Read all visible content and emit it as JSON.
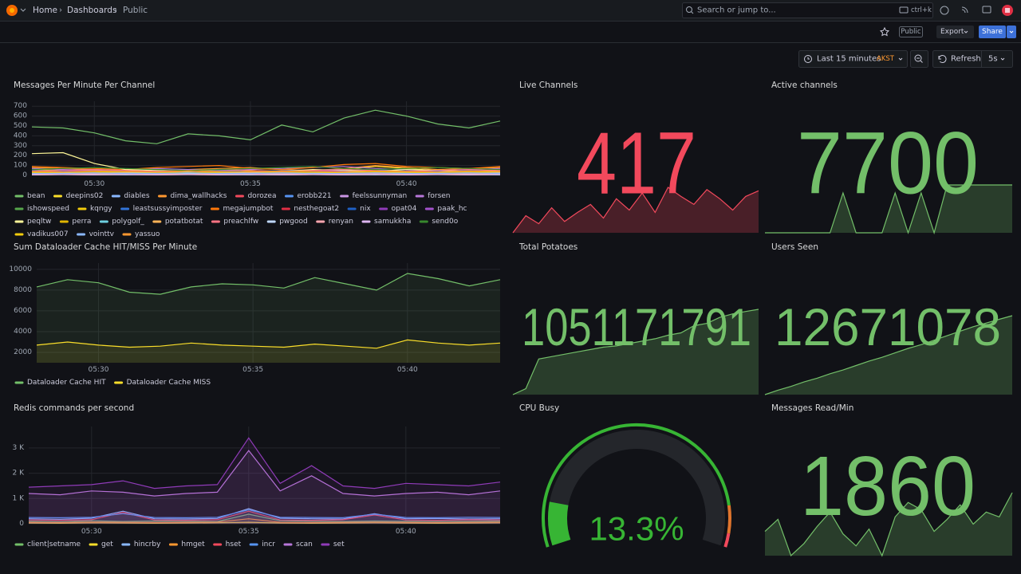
{
  "header": {
    "breadcrumbs": [
      "Home",
      "Dashboards",
      "Public"
    ],
    "search_placeholder": "Search or jump to...",
    "search_shortcut": "ctrl+k"
  },
  "toolbar": {
    "badge": "Public",
    "export": "Export",
    "share": "Share"
  },
  "time_controls": {
    "range": "Last 15 minutes",
    "timezone": "AKST",
    "refresh": "Refresh",
    "interval": "5s"
  },
  "chart_data": [
    {
      "type": "line",
      "title": "Messages Per Minute Per Channel",
      "fill": false,
      "x": [
        "05:28",
        "05:29",
        "05:30",
        "05:31",
        "05:32",
        "05:33",
        "05:34",
        "05:35",
        "05:36",
        "05:37",
        "05:38",
        "05:39",
        "05:40",
        "05:41",
        "05:42",
        "05:43"
      ],
      "xticks": [
        "05:30",
        "05:35",
        "05:40"
      ],
      "ylim": [
        0,
        750
      ],
      "yticks": [
        0,
        100,
        200,
        300,
        400,
        500,
        600,
        700
      ],
      "series": [
        {
          "name": "bean",
          "color": "#73bf69",
          "values": [
            490,
            480,
            430,
            350,
            320,
            420,
            400,
            360,
            510,
            440,
            580,
            660,
            600,
            520,
            480,
            550
          ]
        },
        {
          "name": "deepins02",
          "color": "#fade2a",
          "values": [
            60,
            50,
            40,
            30,
            40,
            50,
            60,
            40,
            30,
            50,
            60,
            90,
            70,
            50,
            40,
            60
          ]
        },
        {
          "name": "diables",
          "color": "#8ab8ff",
          "values": [
            20,
            30,
            25,
            20,
            15,
            30,
            25,
            20,
            15,
            25,
            30,
            20,
            25,
            30,
            20,
            25
          ]
        },
        {
          "name": "dima_wallhacks",
          "color": "#ff9830",
          "values": [
            80,
            70,
            60,
            50,
            40,
            60,
            70,
            80,
            60,
            50,
            70,
            100,
            80,
            60,
            70,
            80
          ]
        },
        {
          "name": "dorozea",
          "color": "#f2495c",
          "values": [
            30,
            40,
            30,
            20,
            30,
            40,
            30,
            20,
            30,
            40,
            30,
            20,
            30,
            40,
            30,
            20
          ]
        },
        {
          "name": "erobb221",
          "color": "#5794f2",
          "values": [
            40,
            30,
            50,
            40,
            30,
            40,
            50,
            40,
            30,
            40,
            50,
            60,
            40,
            30,
            40,
            50
          ]
        },
        {
          "name": "feelssunnyman",
          "color": "#ca95e5",
          "values": [
            10,
            20,
            10,
            15,
            10,
            20,
            10,
            15,
            10,
            20,
            10,
            15,
            10,
            20,
            10,
            15
          ]
        },
        {
          "name": "forsen",
          "color": "#b877d9",
          "values": [
            70,
            60,
            50,
            60,
            70,
            60,
            50,
            60,
            70,
            80,
            90,
            70,
            60,
            50,
            60,
            70
          ]
        },
        {
          "name": "ishowspeed",
          "color": "#56a64b",
          "values": [
            20,
            25,
            30,
            20,
            25,
            30,
            20,
            25,
            30,
            20,
            25,
            30,
            20,
            25,
            30,
            20
          ]
        },
        {
          "name": "kqngy",
          "color": "#f2cc0c",
          "values": [
            5,
            10,
            5,
            10,
            5,
            10,
            5,
            10,
            5,
            10,
            5,
            10,
            5,
            10,
            5,
            10
          ]
        },
        {
          "name": "leastsussyimposter",
          "color": "#3274d9",
          "values": [
            50,
            45,
            40,
            55,
            60,
            50,
            45,
            40,
            50,
            55,
            60,
            50,
            45,
            40,
            50,
            55
          ]
        },
        {
          "name": "megajumpbot",
          "color": "#ff780a",
          "values": [
            90,
            80,
            70,
            60,
            80,
            90,
            100,
            70,
            60,
            80,
            110,
            120,
            90,
            80,
            70,
            90
          ]
        },
        {
          "name": "nesthegoat2",
          "color": "#e02f44",
          "values": [
            15,
            20,
            25,
            20,
            15,
            20,
            25,
            20,
            15,
            20,
            25,
            20,
            15,
            20,
            25,
            20
          ]
        },
        {
          "name": "nix",
          "color": "#1f60c4",
          "values": [
            30,
            35,
            30,
            25,
            30,
            35,
            30,
            25,
            30,
            35,
            30,
            25,
            30,
            35,
            30,
            25
          ]
        },
        {
          "name": "opat04",
          "color": "#8f3bb8",
          "values": [
            25,
            20,
            25,
            30,
            25,
            20,
            25,
            30,
            25,
            20,
            25,
            30,
            25,
            20,
            25,
            30
          ]
        },
        {
          "name": "paak_hc",
          "color": "#a352cc",
          "values": [
            45,
            50,
            40,
            35,
            45,
            50,
            40,
            35,
            45,
            50,
            40,
            35,
            45,
            50,
            40,
            35
          ]
        },
        {
          "name": "peqltw",
          "color": "#fff899",
          "values": [
            220,
            230,
            120,
            60,
            50,
            40,
            60,
            50,
            40,
            60,
            50,
            40,
            60,
            50,
            40,
            50
          ]
        },
        {
          "name": "perra",
          "color": "#e0b400",
          "values": [
            35,
            30,
            35,
            40,
            35,
            30,
            35,
            40,
            35,
            30,
            35,
            40,
            35,
            30,
            35,
            40
          ]
        },
        {
          "name": "polygolf_",
          "color": "#6ed0e0",
          "values": [
            10,
            15,
            10,
            5,
            10,
            15,
            10,
            5,
            10,
            15,
            10,
            5,
            10,
            15,
            10,
            5
          ]
        },
        {
          "name": "potatbotat",
          "color": "#ffb357",
          "values": [
            20,
            15,
            20,
            25,
            20,
            15,
            20,
            25,
            20,
            15,
            20,
            25,
            20,
            15,
            20,
            25
          ]
        },
        {
          "name": "preachlfw",
          "color": "#ff7383",
          "values": [
            40,
            50,
            60,
            50,
            40,
            50,
            60,
            50,
            40,
            50,
            60,
            50,
            40,
            50,
            60,
            50
          ]
        },
        {
          "name": "pwgood",
          "color": "#c0d8ff",
          "values": [
            25,
            30,
            20,
            25,
            30,
            20,
            25,
            30,
            20,
            25,
            30,
            20,
            25,
            30,
            20,
            25
          ]
        },
        {
          "name": "renyan",
          "color": "#ffa6b0",
          "values": [
            15,
            10,
            15,
            20,
            15,
            10,
            15,
            20,
            15,
            10,
            15,
            20,
            15,
            10,
            15,
            20
          ]
        },
        {
          "name": "samukkha",
          "color": "#deb6f2",
          "values": [
            5,
            8,
            5,
            8,
            5,
            8,
            5,
            8,
            5,
            8,
            5,
            8,
            5,
            8,
            5,
            8
          ]
        },
        {
          "name": "send0o",
          "color": "#37872d",
          "values": [
            60,
            70,
            80,
            70,
            60,
            50,
            60,
            70,
            80,
            90,
            70,
            60,
            70,
            80,
            70,
            60
          ]
        },
        {
          "name": "vadikus007",
          "color": "#f2cc0c",
          "values": [
            30,
            25,
            30,
            35,
            30,
            25,
            30,
            35,
            30,
            25,
            30,
            35,
            30,
            25,
            30,
            35
          ]
        },
        {
          "name": "vointtv",
          "color": "#8ab8ff",
          "values": [
            20,
            20,
            25,
            20,
            20,
            25,
            20,
            20,
            25,
            20,
            20,
            25,
            20,
            20,
            25,
            20
          ]
        },
        {
          "name": "yassuo",
          "color": "#ff9830",
          "values": [
            40,
            35,
            45,
            40,
            35,
            45,
            40,
            35,
            45,
            40,
            35,
            45,
            40,
            35,
            45,
            40
          ]
        }
      ]
    },
    {
      "type": "stat",
      "title": "Live Channels",
      "value": 417,
      "color": "#f2495c",
      "sparkline": [
        380,
        395,
        388,
        402,
        390,
        398,
        405,
        393,
        410,
        400,
        415,
        398,
        420,
        412,
        405,
        418,
        410,
        400,
        412,
        417
      ]
    },
    {
      "type": "stat",
      "title": "Active channels",
      "value": 7700,
      "color": "#73bf69",
      "sparkline": [
        7640,
        7640,
        7640,
        7640,
        7640,
        7640,
        7690,
        7640,
        7640,
        7640,
        7690,
        7640,
        7690,
        7640,
        7700,
        7700,
        7700,
        7700,
        7700,
        7700
      ]
    },
    {
      "type": "line",
      "title": "Sum Dataloader Cache HIT/MISS Per Minute",
      "fill": true,
      "x": [
        "05:28",
        "05:29",
        "05:30",
        "05:31",
        "05:32",
        "05:33",
        "05:34",
        "05:35",
        "05:36",
        "05:37",
        "05:38",
        "05:39",
        "05:40",
        "05:41",
        "05:42",
        "05:43"
      ],
      "xticks": [
        "05:30",
        "05:35",
        "05:40"
      ],
      "ylim": [
        1000,
        10600
      ],
      "yticks": [
        2000,
        4000,
        6000,
        8000,
        10000
      ],
      "series": [
        {
          "name": "Dataloader Cache HIT",
          "color": "#73bf69",
          "values": [
            8300,
            9000,
            8700,
            7800,
            7600,
            8300,
            8600,
            8500,
            8200,
            9200,
            8600,
            8000,
            9600,
            9100,
            8400,
            9000
          ]
        },
        {
          "name": "Dataloader Cache MISS",
          "color": "#fade2a",
          "values": [
            2700,
            3000,
            2700,
            2500,
            2600,
            2900,
            2700,
            2600,
            2500,
            2800,
            2600,
            2400,
            3200,
            2900,
            2700,
            2900
          ]
        }
      ]
    },
    {
      "type": "stat",
      "title": "Total Potatoes",
      "value": 1051171791,
      "color": "#73bf69",
      "sparkline": [
        1051100000,
        1051105000,
        1051130000,
        1051132000,
        1051134000,
        1051136000,
        1051138000,
        1051140000,
        1051141000,
        1051143000,
        1051145000,
        1051147000,
        1051150000,
        1051152000,
        1051158000,
        1051160000,
        1051165000,
        1051168000,
        1051170000,
        1051171791
      ]
    },
    {
      "type": "stat",
      "title": "Users Seen",
      "value": 12671078,
      "color": "#73bf69",
      "sparkline": [
        12660500,
        12661100,
        12661600,
        12662200,
        12662700,
        12663300,
        12663800,
        12664400,
        12665000,
        12665500,
        12666100,
        12666700,
        12667200,
        12667800,
        12668400,
        12669000,
        12669600,
        12670100,
        12670600,
        12671078
      ]
    },
    {
      "type": "line",
      "title": "Redis commands per second",
      "fill": true,
      "x": [
        "05:28",
        "05:29",
        "05:30",
        "05:31",
        "05:32",
        "05:33",
        "05:34",
        "05:35",
        "05:36",
        "05:37",
        "05:38",
        "05:39",
        "05:40",
        "05:41",
        "05:42",
        "05:43"
      ],
      "xticks": [
        "05:30",
        "05:35",
        "05:40"
      ],
      "ylim": [
        0,
        3850
      ],
      "yticks": [
        0,
        {
          "value": 1000,
          "label": "1 K"
        },
        {
          "value": 2000,
          "label": "2 K"
        },
        {
          "value": 3000,
          "label": "3 K"
        }
      ],
      "series": [
        {
          "name": "client|setname",
          "color": "#73bf69",
          "values": [
            100,
            80,
            120,
            90,
            110,
            100,
            90,
            380,
            120,
            100,
            90,
            110,
            100,
            90,
            100,
            110
          ]
        },
        {
          "name": "get",
          "color": "#fade2a",
          "values": [
            30,
            20,
            40,
            30,
            20,
            30,
            40,
            60,
            30,
            20,
            30,
            40,
            30,
            20,
            30,
            40
          ]
        },
        {
          "name": "hincrby",
          "color": "#8ab8ff",
          "values": [
            200,
            180,
            220,
            500,
            200,
            190,
            210,
            600,
            220,
            200,
            190,
            400,
            200,
            210,
            190,
            200
          ]
        },
        {
          "name": "hmget",
          "color": "#ff9830",
          "values": [
            60,
            50,
            70,
            60,
            50,
            60,
            70,
            200,
            60,
            50,
            60,
            70,
            60,
            50,
            60,
            70
          ]
        },
        {
          "name": "hset",
          "color": "#f2495c",
          "values": [
            150,
            140,
            160,
            450,
            150,
            140,
            160,
            500,
            150,
            140,
            160,
            350,
            150,
            140,
            160,
            150
          ]
        },
        {
          "name": "incr",
          "color": "#5794f2",
          "values": [
            250,
            240,
            260,
            400,
            250,
            240,
            260,
            550,
            260,
            250,
            240,
            380,
            250,
            240,
            260,
            250
          ]
        },
        {
          "name": "scan",
          "color": "#b877d9",
          "values": [
            1200,
            1150,
            1300,
            1250,
            1100,
            1200,
            1250,
            2900,
            1300,
            1900,
            1200,
            1100,
            1200,
            1250,
            1150,
            1300
          ]
        },
        {
          "name": "set",
          "color": "#8f3bb8",
          "values": [
            1450,
            1500,
            1550,
            1700,
            1400,
            1500,
            1550,
            3400,
            1600,
            2300,
            1500,
            1400,
            1600,
            1550,
            1500,
            1650
          ]
        }
      ]
    },
    {
      "type": "gauge",
      "title": "CPU Busy",
      "value": 13.3,
      "value_label": "13.3%",
      "color": "#37b534",
      "min": 0,
      "max": 100,
      "thresholds": [
        {
          "value": 0,
          "color": "#37b534"
        },
        {
          "value": 88,
          "color": "#e0752d"
        },
        {
          "value": 96,
          "color": "#f2495c"
        }
      ]
    },
    {
      "type": "stat",
      "title": "Messages Read/Min",
      "value": 1860,
      "color": "#73bf69",
      "sparkline": [
        1700,
        1750,
        1600,
        1650,
        1720,
        1780,
        1690,
        1640,
        1710,
        1600,
        1760,
        1820,
        1790,
        1700,
        1750,
        1810,
        1730,
        1780,
        1760,
        1860
      ]
    }
  ]
}
